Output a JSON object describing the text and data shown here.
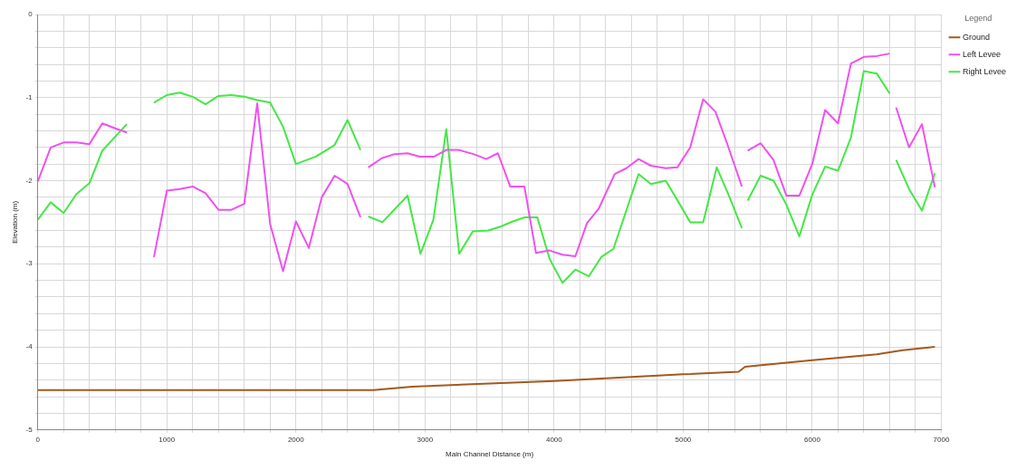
{
  "chart_data": {
    "type": "line",
    "xlabel": "Main Channel Distance (m)",
    "ylabel": "Elevation (m)",
    "legend_title": "Legend",
    "legend": "right",
    "grid": true,
    "marker": "none",
    "line_style": "solid",
    "xlim": [
      0,
      7000
    ],
    "ylim": [
      -5,
      0
    ],
    "xticks": [
      0,
      {
        "value": 200,
        "label": null
      },
      {
        "value": 400,
        "label": null
      },
      {
        "value": 600,
        "label": null
      },
      {
        "value": 800,
        "label": null
      },
      1000,
      {
        "value": 1200,
        "label": null
      },
      {
        "value": 1400,
        "label": null
      },
      {
        "value": 1600,
        "label": null
      },
      {
        "value": 1800,
        "label": null
      },
      2000,
      {
        "value": 2200,
        "label": null
      },
      {
        "value": 2400,
        "label": null
      },
      {
        "value": 2600,
        "label": null
      },
      {
        "value": 2800,
        "label": null
      },
      3000,
      {
        "value": 3200,
        "label": null
      },
      {
        "value": 3400,
        "label": null
      },
      {
        "value": 3600,
        "label": null
      },
      {
        "value": 3800,
        "label": null
      },
      4000,
      {
        "value": 4200,
        "label": null
      },
      {
        "value": 4400,
        "label": null
      },
      {
        "value": 4600,
        "label": null
      },
      {
        "value": 4800,
        "label": null
      },
      5000,
      {
        "value": 5200,
        "label": null
      },
      {
        "value": 5400,
        "label": null
      },
      {
        "value": 5600,
        "label": null
      },
      {
        "value": 5800,
        "label": null
      },
      6000,
      {
        "value": 6200,
        "label": null
      },
      {
        "value": 6400,
        "label": null
      },
      {
        "value": 6600,
        "label": null
      },
      {
        "value": 6800,
        "label": null
      },
      7000
    ],
    "yticks": [
      -5,
      {
        "value": -4.8,
        "label": null
      },
      {
        "value": -4.6,
        "label": null
      },
      {
        "value": -4.4,
        "label": null
      },
      {
        "value": -4.2,
        "label": null
      },
      -4,
      {
        "value": -3.8,
        "label": null
      },
      {
        "value": -3.6,
        "label": null
      },
      {
        "value": -3.4,
        "label": null
      },
      {
        "value": -3.2,
        "label": null
      },
      -3,
      {
        "value": -2.8,
        "label": null
      },
      {
        "value": -2.6,
        "label": null
      },
      {
        "value": -2.4,
        "label": null
      },
      {
        "value": -2.2,
        "label": null
      },
      -2,
      {
        "value": -1.8,
        "label": null
      },
      {
        "value": -1.6,
        "label": null
      },
      {
        "value": -1.4,
        "label": null
      },
      {
        "value": -1.2,
        "label": null
      },
      -1,
      {
        "value": -0.8,
        "label": null
      },
      {
        "value": -0.6,
        "label": null
      },
      {
        "value": -0.4,
        "label": null
      },
      {
        "value": -0.2,
        "label": null
      },
      0
    ],
    "series": [
      {
        "name": "Ground",
        "color": "#a5581f",
        "x": [
          0,
          2600,
          2900,
          3500,
          4000,
          4500,
          5000,
          5430,
          5480,
          6000,
          6500,
          6700,
          6950
        ],
        "values": [
          -4.52,
          -4.52,
          -4.48,
          -4.44,
          -4.41,
          -4.37,
          -4.33,
          -4.3,
          -4.24,
          -4.16,
          -4.09,
          -4.04,
          -4.0
        ]
      },
      {
        "name": "Left Levee",
        "color": "#f050f0",
        "x": [
          0,
          100,
          200,
          300,
          400,
          500,
          600,
          690,
          795,
          900,
          1000,
          1100,
          1200,
          1300,
          1400,
          1500,
          1600,
          1700,
          1800,
          1900,
          2000,
          2100,
          2200,
          2300,
          2400,
          2500,
          2530,
          2560,
          2665,
          2765,
          2865,
          2960,
          3070,
          3165,
          3260,
          3375,
          3475,
          3565,
          3660,
          3770,
          3860,
          3965,
          4065,
          4165,
          4255,
          4345,
          4470,
          4560,
          4655,
          4750,
          4865,
          4955,
          5055,
          5155,
          5250,
          5340,
          5455,
          5480,
          5500,
          5600,
          5700,
          5800,
          5900,
          6000,
          6100,
          6200,
          6300,
          6400,
          6500,
          6600,
          6625,
          6650,
          6750,
          6850,
          6950
        ],
        "values": [
          -2.01,
          -1.6,
          -1.54,
          -1.54,
          -1.56,
          -1.31,
          -1.37,
          -1.42,
          null,
          -2.92,
          -2.12,
          -2.1,
          -2.07,
          -2.15,
          -2.35,
          -2.35,
          -2.28,
          -1.07,
          -2.52,
          -3.09,
          -2.49,
          -2.81,
          -2.2,
          -1.94,
          -2.04,
          -2.44,
          null,
          -1.84,
          -1.73,
          -1.68,
          -1.67,
          -1.71,
          -1.71,
          -1.63,
          -1.63,
          -1.68,
          -1.74,
          -1.67,
          -2.07,
          -2.07,
          -2.87,
          -2.84,
          -2.89,
          -2.91,
          -2.51,
          -2.34,
          -1.92,
          -1.85,
          -1.74,
          -1.82,
          -1.85,
          -1.84,
          -1.6,
          -1.02,
          -1.17,
          -1.55,
          -2.07,
          null,
          -1.64,
          -1.55,
          -1.75,
          -2.18,
          -2.18,
          -1.8,
          -1.15,
          -1.31,
          -0.59,
          -0.51,
          -0.5,
          -0.47,
          null,
          -1.12,
          -1.6,
          -1.32,
          -2.08
        ]
      },
      {
        "name": "Right Levee",
        "color": "#44e844",
        "x": [
          0,
          100,
          200,
          300,
          400,
          500,
          600,
          690,
          795,
          900,
          1000,
          1100,
          1200,
          1300,
          1400,
          1500,
          1600,
          1700,
          1800,
          1900,
          2000,
          2155,
          2300,
          2400,
          2500,
          2530,
          2560,
          2670,
          2865,
          2965,
          3065,
          3165,
          3265,
          3370,
          3490,
          3590,
          3680,
          3775,
          3870,
          3965,
          4065,
          4165,
          4270,
          4365,
          4460,
          4655,
          4750,
          4865,
          4965,
          5055,
          5155,
          5260,
          5360,
          5455,
          5480,
          5500,
          5600,
          5700,
          5800,
          5900,
          6000,
          6100,
          6200,
          6300,
          6400,
          6500,
          6600,
          6625,
          6650,
          6750,
          6850,
          6950
        ],
        "values": [
          -2.47,
          -2.26,
          -2.39,
          -2.16,
          -2.03,
          -1.64,
          -1.47,
          -1.32,
          null,
          -1.06,
          -0.97,
          -0.94,
          -0.99,
          -1.08,
          -0.98,
          -0.97,
          -0.99,
          -1.03,
          -1.06,
          -1.35,
          -1.8,
          -1.71,
          -1.57,
          -1.27,
          -1.63,
          null,
          -2.43,
          -2.5,
          -2.18,
          -2.88,
          -2.47,
          -1.38,
          -2.88,
          -2.61,
          -2.6,
          -2.55,
          -2.49,
          -2.44,
          -2.44,
          -2.94,
          -3.23,
          -3.07,
          -3.15,
          -2.92,
          -2.82,
          -1.92,
          -2.04,
          -2.0,
          -2.26,
          -2.5,
          -2.5,
          -1.84,
          -2.2,
          -2.57,
          null,
          -2.24,
          -1.94,
          -2.0,
          -2.29,
          -2.67,
          -2.17,
          -1.83,
          -1.88,
          -1.48,
          -0.68,
          -0.71,
          -0.95,
          null,
          -1.75,
          -2.1,
          -2.36,
          -1.91
        ]
      }
    ]
  }
}
